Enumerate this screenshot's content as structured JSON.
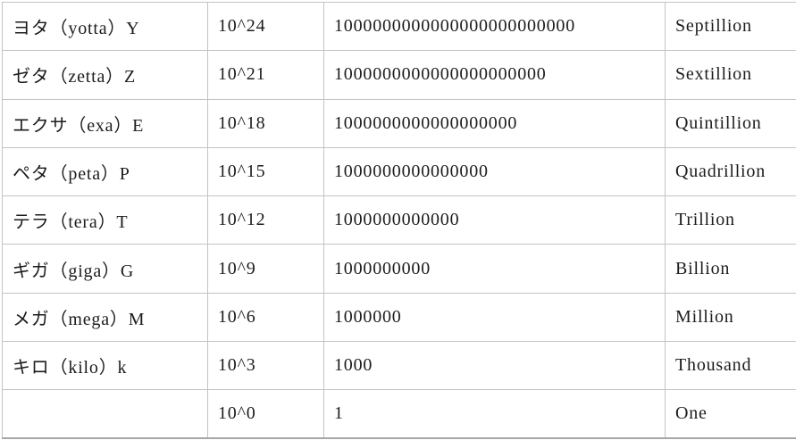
{
  "page": {
    "background": "#ffffff",
    "grid_line_color": "#c3c3c3",
    "bottom_rule_color": "#a6a6a6",
    "text_color": "#1c1c1c"
  },
  "table": {
    "columns": [
      "prefix",
      "power",
      "value",
      "english"
    ],
    "rows": [
      {
        "prefix": "ヨタ（yotta）Y",
        "power": "10^24",
        "value": "1000000000000000000000000",
        "english": "Septillion"
      },
      {
        "prefix": "ゼタ（zetta）Z",
        "power": "10^21",
        "value": "1000000000000000000000",
        "english": "Sextillion"
      },
      {
        "prefix": "エクサ（exa）E",
        "power": "10^18",
        "value": "1000000000000000000",
        "english": "Quintillion"
      },
      {
        "prefix": "ペタ（peta）P",
        "power": "10^15",
        "value": "1000000000000000",
        "english": "Quadrillion"
      },
      {
        "prefix": "テラ（tera）T",
        "power": "10^12",
        "value": "1000000000000",
        "english": "Trillion"
      },
      {
        "prefix": "ギガ（giga）G",
        "power": "10^9",
        "value": "1000000000",
        "english": "Billion"
      },
      {
        "prefix": "メガ（mega）M",
        "power": "10^6",
        "value": "1000000",
        "english": "Million"
      },
      {
        "prefix": "キロ（kilo）k",
        "power": "10^3",
        "value": "1000",
        "english": "Thousand"
      },
      {
        "prefix": "",
        "power": "10^0",
        "value": "1",
        "english": "One"
      }
    ]
  }
}
